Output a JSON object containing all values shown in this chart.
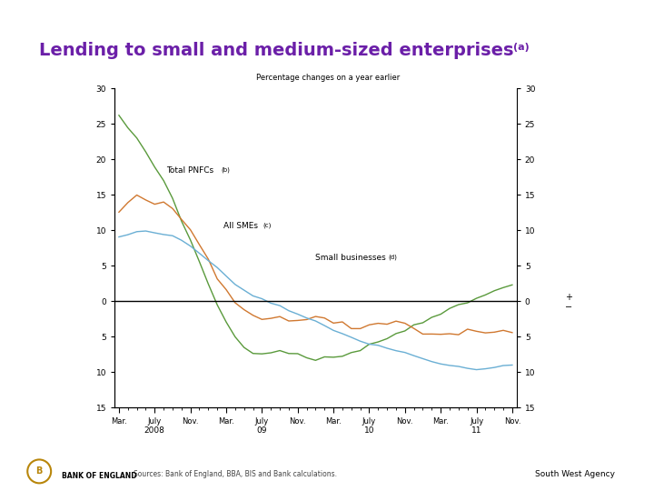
{
  "title": "Lending to small and medium-sized enterprises",
  "title_superscript": "(a)",
  "title_color": "#6B1FA8",
  "subtitle": "Percentage changes on a year earlier",
  "footer_left": "Sources: Bank of England, BBA, BIS and Bank calculations.",
  "footer_right": "South West Agency",
  "yticks": [
    -15,
    -10,
    -5,
    0,
    5,
    10,
    15,
    20,
    25,
    30
  ],
  "ylim": [
    -15,
    30
  ],
  "n_points": 45,
  "color_pnfc": "#5a9a3c",
  "color_sme": "#d07830",
  "color_small": "#6aafd4",
  "label_pnfc": "Total PNFCs",
  "label_pnfc_super": "(b)",
  "label_sme": "All SMEs",
  "label_sme_super": "(c)",
  "label_small": "Small businesses",
  "label_small_super": "(d)",
  "pnfc_data": [
    26.0,
    24.5,
    23.0,
    21.0,
    19.0,
    17.0,
    14.5,
    11.5,
    8.5,
    5.5,
    2.5,
    -0.5,
    -3.0,
    -5.0,
    -6.5,
    -7.2,
    -7.5,
    -7.3,
    -7.0,
    -7.2,
    -7.6,
    -8.0,
    -8.3,
    -8.1,
    -7.9,
    -7.6,
    -7.2,
    -6.7,
    -6.2,
    -5.7,
    -5.2,
    -4.7,
    -4.0,
    -3.4,
    -2.8,
    -2.2,
    -1.7,
    -1.2,
    -0.7,
    -0.2,
    0.3,
    0.9,
    1.4,
    2.0,
    2.5
  ],
  "sme_data": [
    13.0,
    13.8,
    14.4,
    14.2,
    13.8,
    13.5,
    13.0,
    11.5,
    10.0,
    8.0,
    6.0,
    3.5,
    1.5,
    -0.2,
    -1.5,
    -1.9,
    -2.1,
    -2.4,
    -2.6,
    -2.7,
    -2.5,
    -2.3,
    -1.9,
    -2.3,
    -2.8,
    -3.3,
    -3.8,
    -3.9,
    -3.7,
    -3.5,
    -3.2,
    -2.9,
    -3.3,
    -3.8,
    -4.2,
    -4.8,
    -4.9,
    -4.7,
    -4.5,
    -3.9,
    -4.1,
    -4.4,
    -4.7,
    -4.5,
    -4.6
  ],
  "small_data": [
    9.0,
    9.3,
    9.8,
    9.9,
    9.7,
    9.4,
    9.0,
    8.5,
    7.8,
    6.8,
    5.8,
    4.7,
    3.5,
    2.5,
    1.5,
    0.8,
    0.2,
    -0.3,
    -0.8,
    -1.3,
    -1.8,
    -2.4,
    -2.9,
    -3.5,
    -4.0,
    -4.6,
    -5.1,
    -5.6,
    -6.0,
    -6.4,
    -6.6,
    -6.9,
    -7.3,
    -7.7,
    -8.1,
    -8.6,
    -8.9,
    -9.1,
    -9.3,
    -9.5,
    -9.6,
    -9.5,
    -9.3,
    -9.1,
    -8.9
  ]
}
